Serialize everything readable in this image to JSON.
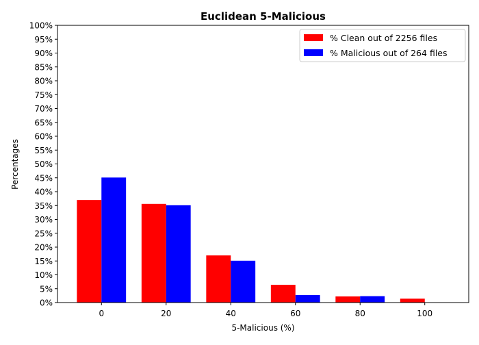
{
  "chart_data": {
    "type": "bar",
    "title": "Euclidean 5-Malicious",
    "xlabel": "5-Malicious (%)",
    "ylabel": "Percentages",
    "categories": [
      "0",
      "20",
      "40",
      "60",
      "80",
      "100"
    ],
    "x_values": [
      0,
      20,
      40,
      60,
      80,
      100
    ],
    "xlim": [
      -13.6,
      113.6
    ],
    "ylim": [
      0,
      100
    ],
    "y_ticks": [
      0,
      5,
      10,
      15,
      20,
      25,
      30,
      35,
      40,
      45,
      50,
      55,
      60,
      65,
      70,
      75,
      80,
      85,
      90,
      95,
      100
    ],
    "y_tick_suffix": "%",
    "grid": false,
    "legend_position": "top-right",
    "series": [
      {
        "name": "% Clean out of 2256 files",
        "color": "#ff0000",
        "values": [
          37.0,
          35.6,
          17.0,
          6.4,
          2.2,
          1.4
        ]
      },
      {
        "name": "% Malicious out of 264 files",
        "color": "#0000ff",
        "values": [
          45.1,
          35.1,
          15.1,
          2.7,
          2.3,
          0
        ]
      }
    ]
  }
}
